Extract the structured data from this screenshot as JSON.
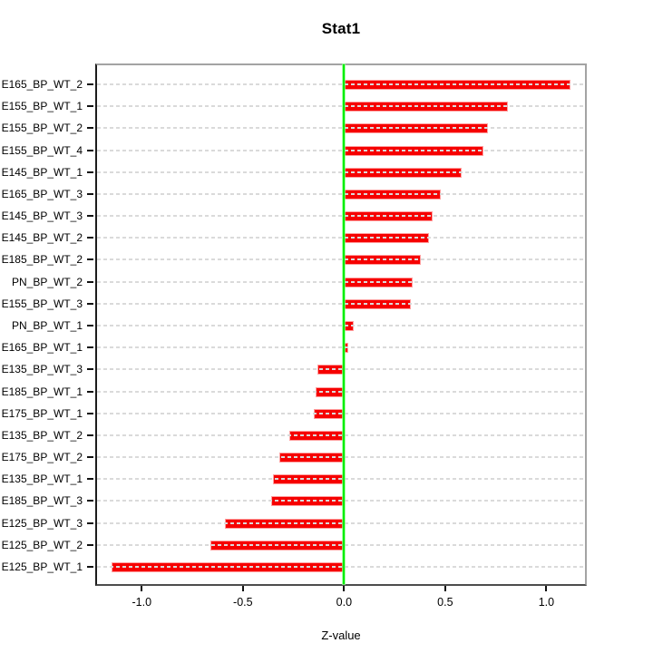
{
  "chart_data": {
    "type": "bar",
    "orientation": "horizontal",
    "title": "Stat1",
    "xlabel": "Z-value",
    "ylabel": "",
    "legend_position": "none",
    "grid": "dashed horizontal line per category, drawn over bars",
    "zero_reference_line": 0.0,
    "xlim": [
      -1.23,
      1.2
    ],
    "categories": [
      "E165_BP_WT_2",
      "E155_BP_WT_1",
      "E155_BP_WT_2",
      "E155_BP_WT_4",
      "E145_BP_WT_1",
      "E165_BP_WT_3",
      "E145_BP_WT_3",
      "E145_BP_WT_2",
      "E185_BP_WT_2",
      "PN_BP_WT_2",
      "E155_BP_WT_3",
      "PN_BP_WT_1",
      "E165_BP_WT_1",
      "E135_BP_WT_3",
      "E185_BP_WT_1",
      "E175_BP_WT_1",
      "E135_BP_WT_2",
      "E175_BP_WT_2",
      "E135_BP_WT_1",
      "E185_BP_WT_3",
      "E125_BP_WT_3",
      "E125_BP_WT_2",
      "E125_BP_WT_1"
    ],
    "values": [
      1.12,
      0.81,
      0.71,
      0.69,
      0.58,
      0.48,
      0.44,
      0.42,
      0.38,
      0.34,
      0.33,
      0.05,
      0.02,
      -0.13,
      -0.14,
      -0.15,
      -0.27,
      -0.32,
      -0.35,
      -0.36,
      -0.59,
      -0.66,
      -1.15
    ],
    "x_ticks": {
      "values": [
        -1.0,
        -0.5,
        0.0,
        0.5,
        1.0
      ],
      "labels": [
        "-1.0",
        "-0.5",
        "0.0",
        "0.5",
        "1.0"
      ]
    },
    "colors": {
      "bar_fill": "#f60000",
      "bar_edge": "#ff9f9f",
      "zero_line": "#00ee00",
      "gridline": "#dadada",
      "box_border": "#a3a3a3",
      "axis_text": "#000000",
      "background": "#ffffff"
    }
  }
}
